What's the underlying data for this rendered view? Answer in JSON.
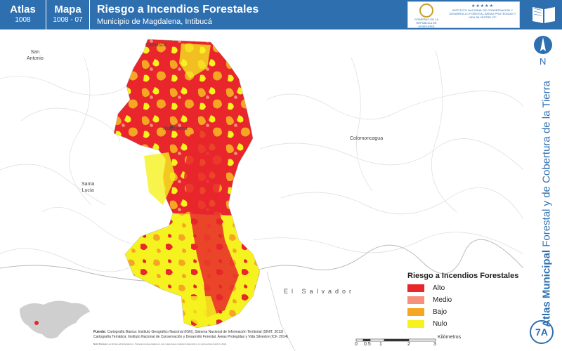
{
  "header": {
    "atlas_label": "Atlas",
    "atlas_number": "1008",
    "mapa_label": "Mapa",
    "mapa_number": "1008 - 07",
    "title": "Riesgo a Incendios Forestales",
    "subtitle": "Municipio de Magdalena, Intibucá",
    "logo_gov_text": "GOBIERNO DE LA REPÚBLICA DE HONDURAS",
    "logo_icf_text": "INSTITUTO NACIONAL DE CONSERVACIÓN Y DESARROLLO FORESTAL ÁREAS PROTEGIDAS Y VIDA SILVESTRE ICF"
  },
  "side": {
    "north_label": "N",
    "vertical_title_bold": "Atlas Municipal",
    "vertical_title_rest": " Forestal y de Cobertura de la Tierra",
    "badge": "7A"
  },
  "places": {
    "san_antonio": "San\nAntonio",
    "camasca": "Camasca",
    "magdalena": "Magdalena",
    "colomoncagua": "Colomoncagua",
    "santa_lucia": "Santa\nLucía",
    "el_salvador": "El Salvador"
  },
  "legend": {
    "title": "Riesgo a Incendios Forestales",
    "items": [
      {
        "label": "Alto",
        "color": "#e8262b"
      },
      {
        "label": "Medio",
        "color": "#f5907a"
      },
      {
        "label": "Bajo",
        "color": "#f5a623"
      },
      {
        "label": "Nulo",
        "color": "#f5f21f"
      }
    ]
  },
  "scale": {
    "unit": "Kilómetros",
    "ticks": [
      "0",
      "0.5",
      "1",
      "2",
      "3"
    ]
  },
  "sources": {
    "label": "Fuente:",
    "line1": "Cartografía Básica: Instituto Geográfico Nacional (IGN), Sistema Nacional de Información Territorial (SINIT, 2013)",
    "line2": "Cartografía Temática: Instituto Nacional de Conservación y Desarrollo Forestal, Áreas Protegidas y Vida Silvestre (ICF, 2014)",
    "notes_label": "Nota Técnica:",
    "notes": "Los límites administrativos y fronteras representados en este mapa tienen carácter referencial y no representan posición oficial."
  },
  "colors": {
    "header_blue": "#2e6fb0",
    "alto": "#e8262b",
    "medio": "#f5907a",
    "bajo": "#f5a623",
    "nulo": "#f5f21f"
  }
}
